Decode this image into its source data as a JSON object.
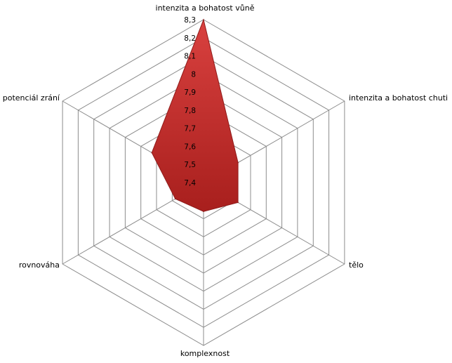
{
  "chart_data": {
    "type": "radar",
    "categories": [
      "intenzita a bohatost vůně",
      "intenzita a bohatost chuti",
      "tělo",
      "komplexnost",
      "rovnováha",
      "potenciál zrání"
    ],
    "series": [
      {
        "values": [
          8.3,
          7.62,
          7.62,
          7.56,
          7.58,
          7.73
        ]
      }
    ],
    "rlim": [
      7.4,
      8.3
    ],
    "ticks": [
      "7,4",
      "7,5",
      "7,6",
      "7,7",
      "7,8",
      "7,9",
      "8",
      "8,1",
      "8,2",
      "8,3"
    ],
    "grid": true,
    "legend": "none",
    "colors": {
      "fill": "#d9413f",
      "fill_dark": "#a81f1d",
      "stroke": "#8f1c1b",
      "grid": "#8c8c8c"
    }
  }
}
